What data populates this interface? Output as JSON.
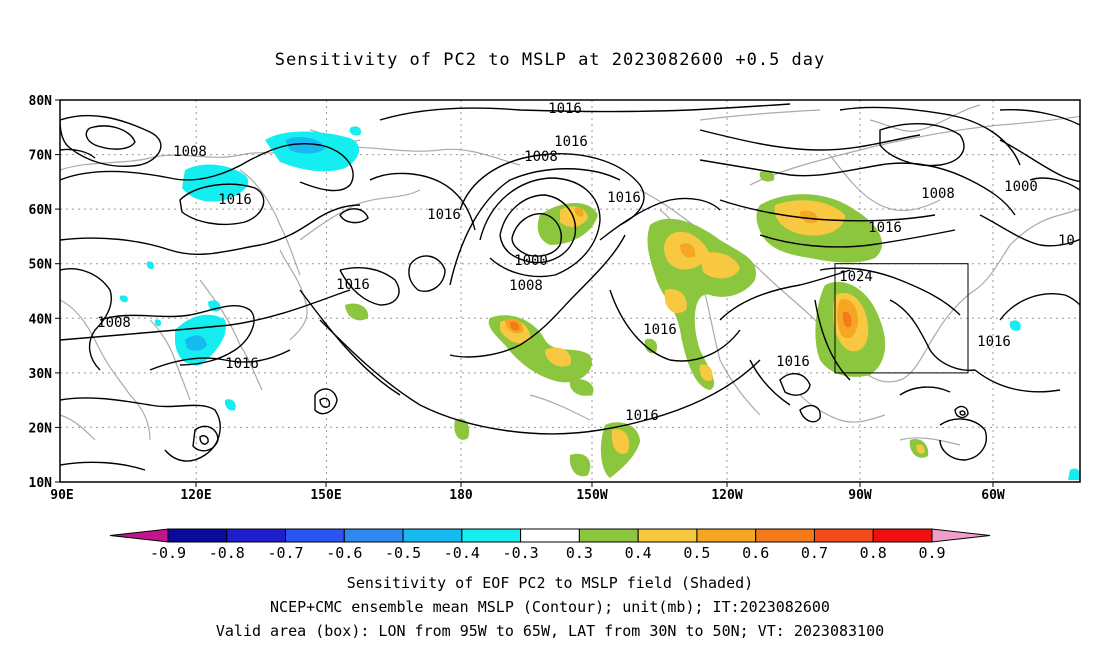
{
  "title": "Sensitivity of PC2 to MSLP at 2023082600 +0.5 day",
  "map": {
    "lat_ticks": [
      "80N",
      "70N",
      "60N",
      "50N",
      "40N",
      "30N",
      "20N",
      "10N"
    ],
    "lon_ticks": [
      "90E",
      "120E",
      "150E",
      "180",
      "150W",
      "120W",
      "90W",
      "60W"
    ],
    "valid_box": {
      "lon_from": "95W",
      "lon_to": "65W",
      "lat_from": "30N",
      "lat_to": "50N"
    }
  },
  "contour_labels": [
    "1016",
    "1016",
    "1008",
    "1008",
    "1016",
    "1016",
    "1016",
    "1016",
    "1000",
    "1008",
    "1016",
    "1016",
    "1008",
    "1000",
    "1016",
    "1024",
    "1016",
    "1016",
    "1016",
    "1008",
    "1016",
    "1008",
    "10"
  ],
  "colorbar": {
    "labels": [
      "-0.9",
      "-0.8",
      "-0.7",
      "-0.6",
      "-0.5",
      "-0.4",
      "-0.3",
      "0.3",
      "0.4",
      "0.5",
      "0.6",
      "0.7",
      "0.8",
      "0.9"
    ],
    "colors": [
      "#0a0a9c",
      "#1e1ecc",
      "#2a55f0",
      "#2f88f0",
      "#16b9f0",
      "#14eef0",
      "#ffffff",
      "#8cc63f",
      "#f8c840",
      "#f5a623",
      "#f57a1a",
      "#f54a1a",
      "#f01010"
    ],
    "low_extend_color": "#c0158c",
    "high_extend_color": "#f0a0c8"
  },
  "caption": {
    "line1": "Sensitivity of EOF PC2 to MSLP field (Shaded)",
    "line2": "NCEP+CMC ensemble mean MSLP (Contour); unit(mb); IT:2023082600",
    "line3": "Valid area (box): LON from 95W to 65W, LAT from 30N to 50N; VT: 2023083100"
  }
}
